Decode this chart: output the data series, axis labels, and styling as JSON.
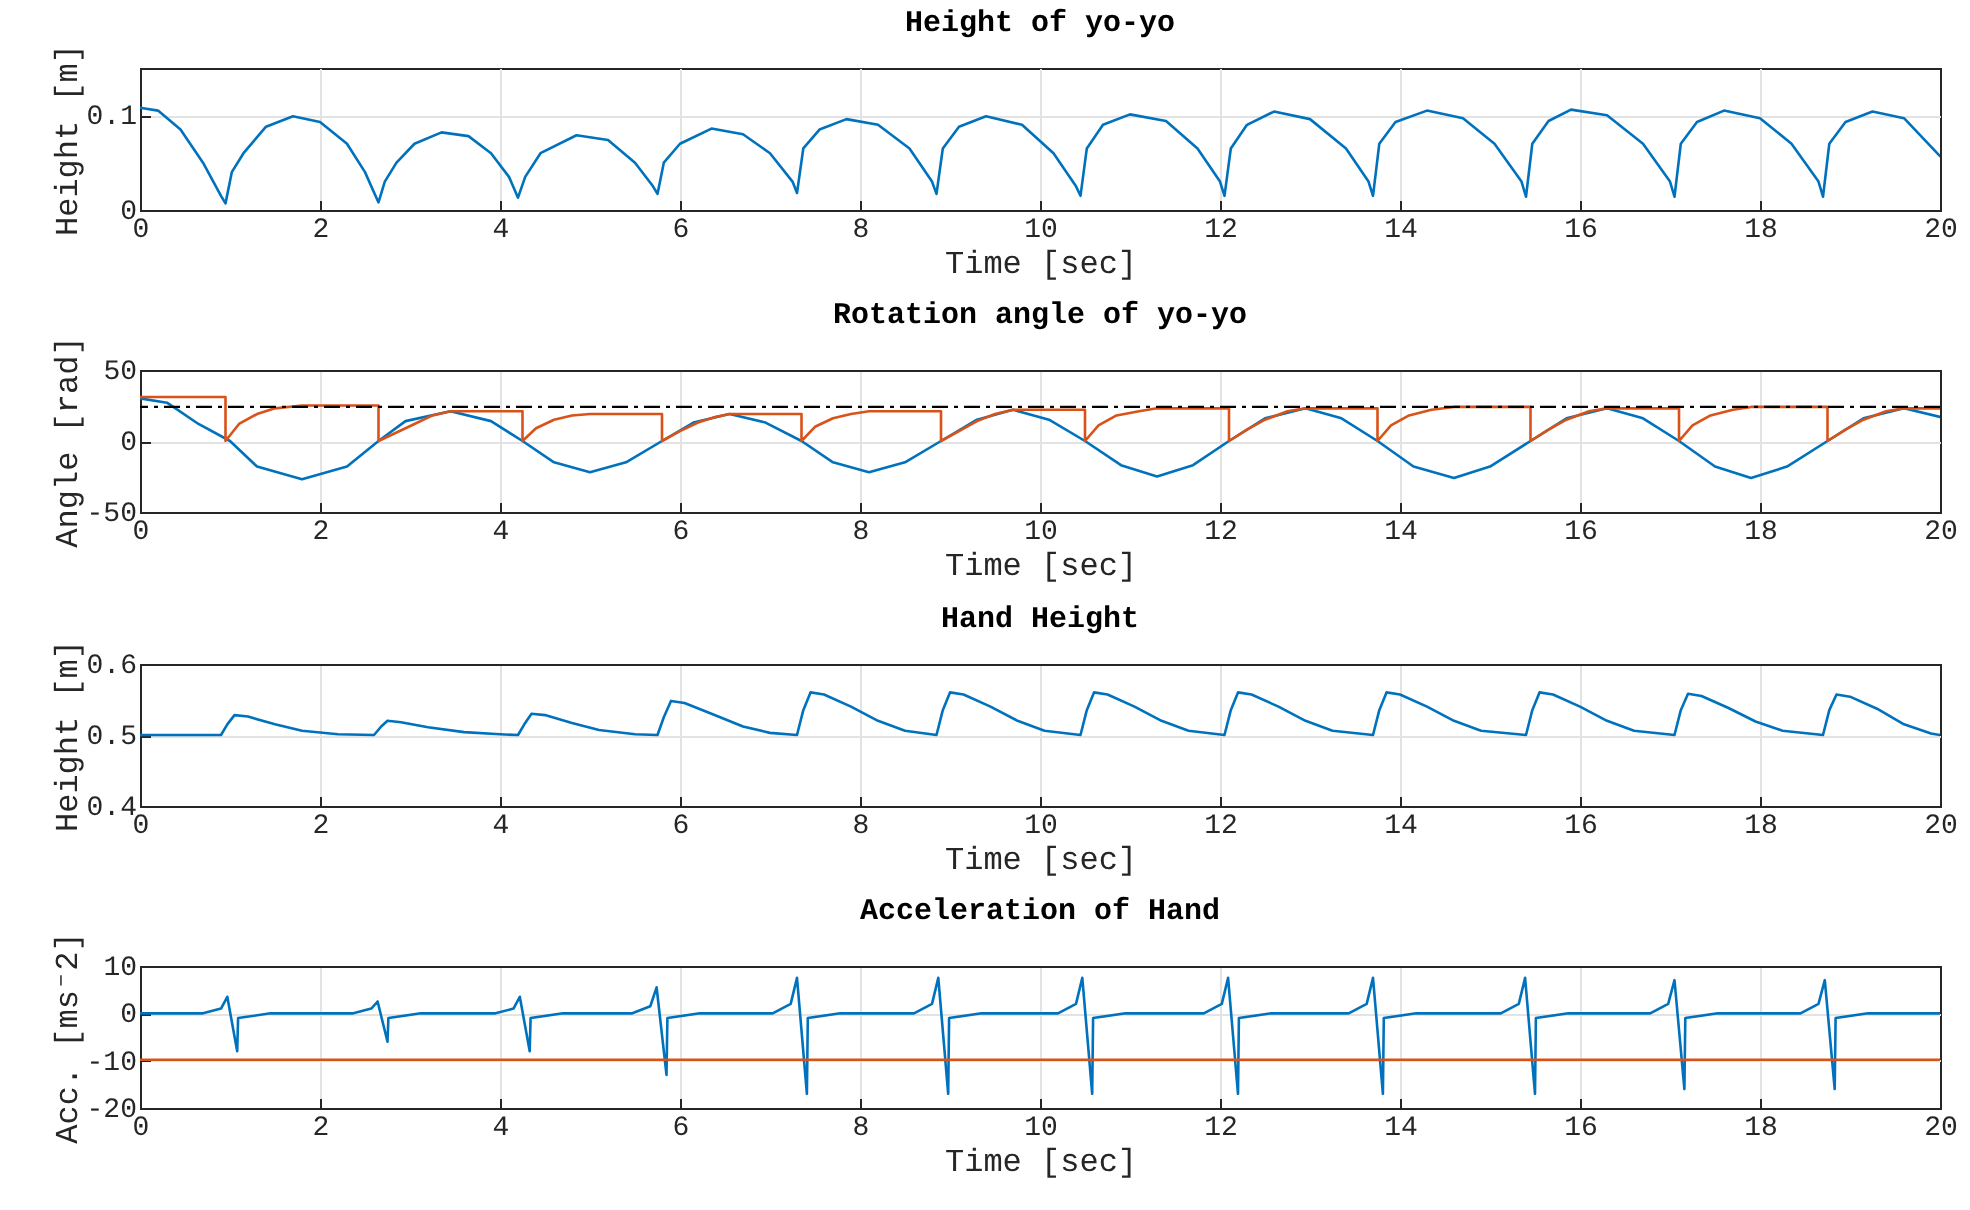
{
  "chart_data": [
    {
      "type": "line",
      "title": "Height of yo-yo",
      "xlabel": "Time [sec]",
      "ylabel": "Height [m]",
      "xlim": [
        0,
        20
      ],
      "xticks": [
        0,
        2,
        4,
        6,
        8,
        10,
        12,
        14,
        16,
        18,
        20
      ],
      "ylim": [
        0,
        0.15
      ],
      "yticks": [
        0,
        0.1
      ],
      "grid": true,
      "series": [
        {
          "color": "#0072bd",
          "x": [
            0,
            0.2,
            0.45,
            0.7,
            0.9,
            0.95,
            1.02,
            1.15,
            1.4,
            1.7,
            2.0,
            2.3,
            2.5,
            2.65,
            2.72,
            2.85,
            3.05,
            3.35,
            3.65,
            3.9,
            4.1,
            4.2,
            4.28,
            4.45,
            4.85,
            5.2,
            5.5,
            5.7,
            5.75,
            5.82,
            6.0,
            6.35,
            6.7,
            7.0,
            7.25,
            7.3,
            7.37,
            7.55,
            7.85,
            8.2,
            8.55,
            8.8,
            8.85,
            8.92,
            9.1,
            9.4,
            9.8,
            10.15,
            10.4,
            10.45,
            10.52,
            10.7,
            11.0,
            11.4,
            11.75,
            12.0,
            12.05,
            12.12,
            12.3,
            12.6,
            13.0,
            13.4,
            13.65,
            13.7,
            13.77,
            13.95,
            14.3,
            14.7,
            15.05,
            15.35,
            15.4,
            15.47,
            15.65,
            15.9,
            16.3,
            16.7,
            17.0,
            17.05,
            17.12,
            17.3,
            17.6,
            18.0,
            18.35,
            18.65,
            18.7,
            18.77,
            18.95,
            19.25,
            19.6,
            20
          ],
          "values": [
            0.108,
            0.105,
            0.085,
            0.05,
            0.015,
            0.007,
            0.04,
            0.06,
            0.088,
            0.099,
            0.093,
            0.07,
            0.04,
            0.008,
            0.03,
            0.05,
            0.07,
            0.082,
            0.078,
            0.06,
            0.035,
            0.013,
            0.035,
            0.06,
            0.079,
            0.074,
            0.05,
            0.025,
            0.017,
            0.05,
            0.07,
            0.086,
            0.08,
            0.06,
            0.03,
            0.018,
            0.065,
            0.085,
            0.096,
            0.09,
            0.065,
            0.03,
            0.017,
            0.065,
            0.088,
            0.099,
            0.09,
            0.06,
            0.025,
            0.015,
            0.065,
            0.09,
            0.101,
            0.094,
            0.065,
            0.03,
            0.015,
            0.065,
            0.09,
            0.104,
            0.096,
            0.065,
            0.03,
            0.015,
            0.07,
            0.093,
            0.105,
            0.097,
            0.07,
            0.03,
            0.014,
            0.07,
            0.094,
            0.106,
            0.1,
            0.07,
            0.03,
            0.014,
            0.07,
            0.093,
            0.105,
            0.097,
            0.07,
            0.03,
            0.014,
            0.07,
            0.093,
            0.104,
            0.097,
            0.057
          ]
        }
      ]
    },
    {
      "type": "line",
      "title": "Rotation angle of yo-yo",
      "xlabel": "Time [sec]",
      "ylabel": "Angle [rad]",
      "xlim": [
        0,
        20
      ],
      "xticks": [
        0,
        2,
        4,
        6,
        8,
        10,
        12,
        14,
        16,
        18,
        20
      ],
      "ylim": [
        -50,
        50
      ],
      "yticks": [
        -50,
        0,
        50
      ],
      "grid": true,
      "ref_lines": [
        {
          "axis": "y",
          "value": 24,
          "color": "#000000",
          "line_style": "dashed"
        }
      ],
      "series": [
        {
          "color": "#0072bd",
          "x": [
            0,
            0.3,
            0.65,
            1.0,
            1.3,
            1.8,
            2.3,
            2.65,
            2.95,
            3.45,
            3.9,
            4.25,
            4.6,
            5.0,
            5.4,
            5.8,
            6.15,
            6.55,
            6.95,
            7.35,
            7.7,
            8.1,
            8.5,
            8.9,
            9.3,
            9.7,
            10.1,
            10.5,
            10.9,
            11.3,
            11.7,
            12.1,
            12.5,
            12.95,
            13.35,
            13.75,
            14.15,
            14.6,
            15.0,
            15.45,
            15.85,
            16.3,
            16.7,
            17.1,
            17.5,
            17.9,
            18.3,
            18.75,
            19.15,
            19.6,
            20
          ],
          "values": [
            30,
            27,
            12,
            0,
            -18,
            -27,
            -18,
            0,
            14,
            21,
            14,
            0,
            -15,
            -22,
            -15,
            0,
            13,
            19,
            13,
            0,
            -15,
            -22,
            -15,
            0,
            15,
            22,
            15,
            0,
            -17,
            -25,
            -17,
            0,
            16,
            23,
            16,
            0,
            -18,
            -26,
            -18,
            0,
            16,
            23,
            16,
            0,
            -18,
            -26,
            -18,
            0,
            16,
            23,
            17
          ]
        },
        {
          "color": "#d95319",
          "x": [
            0,
            0.95,
            0.95,
            1.1,
            1.3,
            1.5,
            1.8,
            2.65,
            2.65,
            2.85,
            3.05,
            3.25,
            3.45,
            4.25,
            4.25,
            4.4,
            4.6,
            4.8,
            5.0,
            5.8,
            5.8,
            6.0,
            6.2,
            6.4,
            6.55,
            7.35,
            7.35,
            7.5,
            7.7,
            7.9,
            8.1,
            8.9,
            8.9,
            9.1,
            9.3,
            9.5,
            9.7,
            10.5,
            10.5,
            10.65,
            10.85,
            11.1,
            11.3,
            12.1,
            12.1,
            12.3,
            12.5,
            12.75,
            12.95,
            13.75,
            13.75,
            13.9,
            14.1,
            14.35,
            14.6,
            15.45,
            15.45,
            15.65,
            15.85,
            16.1,
            16.3,
            17.1,
            17.1,
            17.25,
            17.45,
            17.7,
            17.9,
            18.75,
            18.75,
            18.95,
            19.15,
            19.4,
            19.6,
            20
          ],
          "values": [
            31,
            31,
            0,
            12,
            19,
            23,
            25,
            25,
            0,
            6,
            12,
            18,
            21,
            21,
            0,
            9,
            15,
            18,
            19,
            19,
            0,
            7,
            13,
            17,
            19,
            19,
            0,
            10,
            16,
            19,
            21,
            21,
            0,
            7,
            14,
            19,
            22,
            22,
            0,
            11,
            18,
            21,
            23,
            23,
            0,
            8,
            15,
            21,
            23,
            23,
            0,
            11,
            18,
            22,
            24,
            24,
            0,
            8,
            15,
            21,
            23,
            23,
            0,
            11,
            18,
            22,
            24,
            24,
            0,
            8,
            15,
            21,
            23,
            23
          ]
        }
      ]
    },
    {
      "type": "line",
      "title": "Hand Height",
      "xlabel": "Time [sec]",
      "ylabel": "Height [m]",
      "xlim": [
        0,
        20
      ],
      "xticks": [
        0,
        2,
        4,
        6,
        8,
        10,
        12,
        14,
        16,
        18,
        20
      ],
      "ylim": [
        0.4,
        0.6
      ],
      "yticks": [
        0.4,
        0.5,
        0.6
      ],
      "grid": true,
      "series": [
        {
          "color": "#0072bd",
          "x": [
            0,
            0.9,
            0.97,
            1.05,
            1.2,
            1.5,
            1.8,
            2.2,
            2.6,
            2.68,
            2.75,
            2.9,
            3.2,
            3.6,
            4.0,
            4.2,
            4.27,
            4.35,
            4.5,
            4.8,
            5.1,
            5.5,
            5.75,
            5.82,
            5.9,
            6.05,
            6.35,
            6.7,
            7.0,
            7.3,
            7.37,
            7.45,
            7.6,
            7.9,
            8.2,
            8.5,
            8.85,
            8.92,
            9.0,
            9.15,
            9.45,
            9.75,
            10.05,
            10.45,
            10.52,
            10.6,
            10.75,
            11.05,
            11.35,
            11.65,
            12.05,
            12.12,
            12.2,
            12.35,
            12.65,
            12.95,
            13.25,
            13.7,
            13.77,
            13.85,
            14.0,
            14.3,
            14.6,
            14.9,
            15.4,
            15.47,
            15.55,
            15.7,
            16.0,
            16.3,
            16.6,
            17.05,
            17.12,
            17.2,
            17.35,
            17.65,
            17.95,
            18.25,
            18.7,
            18.77,
            18.85,
            19.0,
            19.3,
            19.6,
            19.9,
            20
          ],
          "values": [
            0.5,
            0.5,
            0.515,
            0.528,
            0.526,
            0.515,
            0.506,
            0.501,
            0.5,
            0.512,
            0.52,
            0.518,
            0.511,
            0.504,
            0.501,
            0.5,
            0.515,
            0.53,
            0.528,
            0.517,
            0.507,
            0.501,
            0.5,
            0.525,
            0.548,
            0.545,
            0.53,
            0.512,
            0.503,
            0.5,
            0.535,
            0.56,
            0.557,
            0.54,
            0.52,
            0.506,
            0.5,
            0.535,
            0.56,
            0.557,
            0.54,
            0.52,
            0.506,
            0.5,
            0.535,
            0.56,
            0.557,
            0.54,
            0.52,
            0.506,
            0.5,
            0.535,
            0.56,
            0.557,
            0.54,
            0.52,
            0.506,
            0.5,
            0.535,
            0.56,
            0.557,
            0.54,
            0.52,
            0.506,
            0.5,
            0.535,
            0.56,
            0.557,
            0.54,
            0.52,
            0.506,
            0.5,
            0.535,
            0.558,
            0.555,
            0.538,
            0.519,
            0.506,
            0.5,
            0.535,
            0.557,
            0.554,
            0.537,
            0.515,
            0.502,
            0.5
          ]
        }
      ]
    },
    {
      "type": "line",
      "title": "Acceleration of Hand",
      "xlabel": "Time [sec]",
      "ylabel": "Acc. [ms⁻2]",
      "xlim": [
        0,
        20
      ],
      "xticks": [
        0,
        2,
        4,
        6,
        8,
        10,
        12,
        14,
        16,
        18,
        20
      ],
      "ylim": [
        -20,
        10
      ],
      "yticks": [
        -20,
        -10,
        0,
        10
      ],
      "grid": true,
      "series": [
        {
          "color": "#0072bd",
          "x": [
            0,
            0.7,
            0.9,
            0.97,
            1.08,
            1.09,
            1.45,
            2.37,
            2.57,
            2.64,
            2.75,
            2.76,
            3.12,
            3.95,
            4.15,
            4.22,
            4.33,
            4.34,
            4.7,
            5.47,
            5.67,
            5.74,
            5.85,
            5.86,
            6.22,
            7.03,
            7.23,
            7.3,
            7.41,
            7.42,
            7.78,
            8.6,
            8.8,
            8.87,
            8.98,
            8.99,
            9.35,
            10.2,
            10.4,
            10.47,
            10.58,
            10.59,
            10.95,
            11.82,
            12.02,
            12.09,
            12.2,
            12.21,
            12.57,
            13.43,
            13.63,
            13.7,
            13.81,
            13.82,
            14.18,
            15.12,
            15.32,
            15.39,
            15.5,
            15.51,
            15.87,
            16.78,
            16.98,
            17.05,
            17.16,
            17.17,
            17.53,
            18.45,
            18.65,
            18.72,
            18.83,
            18.84,
            19.2,
            20
          ],
          "values": [
            0,
            0,
            1,
            3.5,
            -8,
            -1,
            0,
            0,
            1,
            2.5,
            -6,
            -1,
            0,
            0,
            1,
            3.5,
            -8,
            -1,
            0,
            0,
            1.5,
            5.5,
            -13,
            -1,
            0,
            0,
            2,
            7.5,
            -17,
            -1,
            0,
            0,
            2,
            7.5,
            -17,
            -1,
            0,
            0,
            2,
            7.5,
            -17,
            -1,
            0,
            0,
            2,
            7.5,
            -17,
            -1,
            0,
            0,
            2,
            7.5,
            -17,
            -1,
            0,
            0,
            2,
            7.5,
            -17,
            -1,
            0,
            0,
            2,
            7,
            -16,
            -1,
            0,
            0,
            2,
            7,
            -16,
            -1,
            0,
            0
          ]
        },
        {
          "color": "#d95319",
          "x": [
            0,
            5,
            10,
            15,
            20
          ],
          "values": [
            -9.8,
            -9.8,
            -9.8,
            -9.8,
            -9.8
          ]
        }
      ]
    }
  ]
}
